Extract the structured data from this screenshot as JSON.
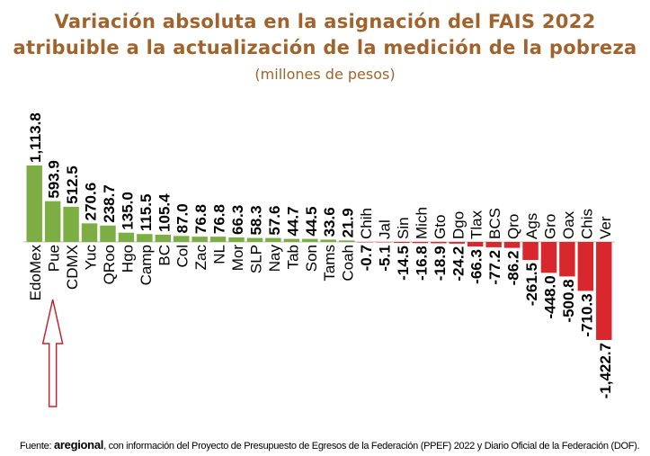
{
  "title_line1": "Variación absoluta en la asignación del FAIS 2022",
  "title_line2": "atribuible a la actualización de la medición de la pobreza",
  "subtitle": "(millones de pesos)",
  "source": {
    "prefix": "Fuente: ",
    "brand": "aregional",
    "text": ", con información del Proyecto de Presupuesto de Egresos de la Federación (PPEF) 2022 y Diario Oficial de la Federación (DOF)."
  },
  "colors": {
    "positive": "#7cae44",
    "negative": "#d9272e",
    "title": "#a0632c",
    "arrow": "#c0272d"
  },
  "chart_data": {
    "type": "bar",
    "title": "Variación absoluta en la asignación del FAIS 2022 atribuible a la actualización de la medición de la pobreza",
    "subtitle": "(millones de pesos)",
    "categories": [
      "EdoMex",
      "Pue",
      "CDMX",
      "Yuc",
      "QRoo",
      "Hgo",
      "Camp",
      "BC",
      "Col",
      "Zac",
      "NL",
      "Mor",
      "SLP",
      "Nay",
      "Tab",
      "Son",
      "Tams",
      "Coah",
      "Chih",
      "Jal",
      "Sin",
      "Mich",
      "Gto",
      "Dgo",
      "Tlax",
      "BCS",
      "Qro",
      "Ags",
      "Gro",
      "Oax",
      "Chis",
      "Ver"
    ],
    "values": [
      1113.8,
      593.9,
      512.5,
      270.6,
      238.7,
      135.0,
      115.5,
      105.4,
      87.0,
      76.8,
      76.8,
      66.3,
      58.3,
      57.6,
      44.7,
      44.5,
      33.6,
      21.9,
      -0.7,
      -5.1,
      -14.5,
      -16.8,
      -18.9,
      -24.2,
      -66.3,
      -77.2,
      -86.2,
      -261.5,
      -448.0,
      -500.8,
      -710.3,
      -1422.7
    ],
    "labels": [
      "1,113.8",
      "593.9",
      "512.5",
      "270.6",
      "238.7",
      "135.0",
      "115.5",
      "105.4",
      "87.0",
      "76.8",
      "76.8",
      "66.3",
      "58.3",
      "57.6",
      "44.7",
      "44.5",
      "33.6",
      "21.9",
      "-0.7",
      "-5.1",
      "-14.5",
      "-16.8",
      "-18.9",
      "-24.2",
      "-66.3",
      "-77.2",
      "-86.2",
      "-261.5",
      "-448.0",
      "-500.8",
      "-710.3",
      "-1,422.7"
    ],
    "ylim": [
      -1422.7,
      1113.8
    ],
    "grid": false,
    "highlight_category": "Pue"
  }
}
